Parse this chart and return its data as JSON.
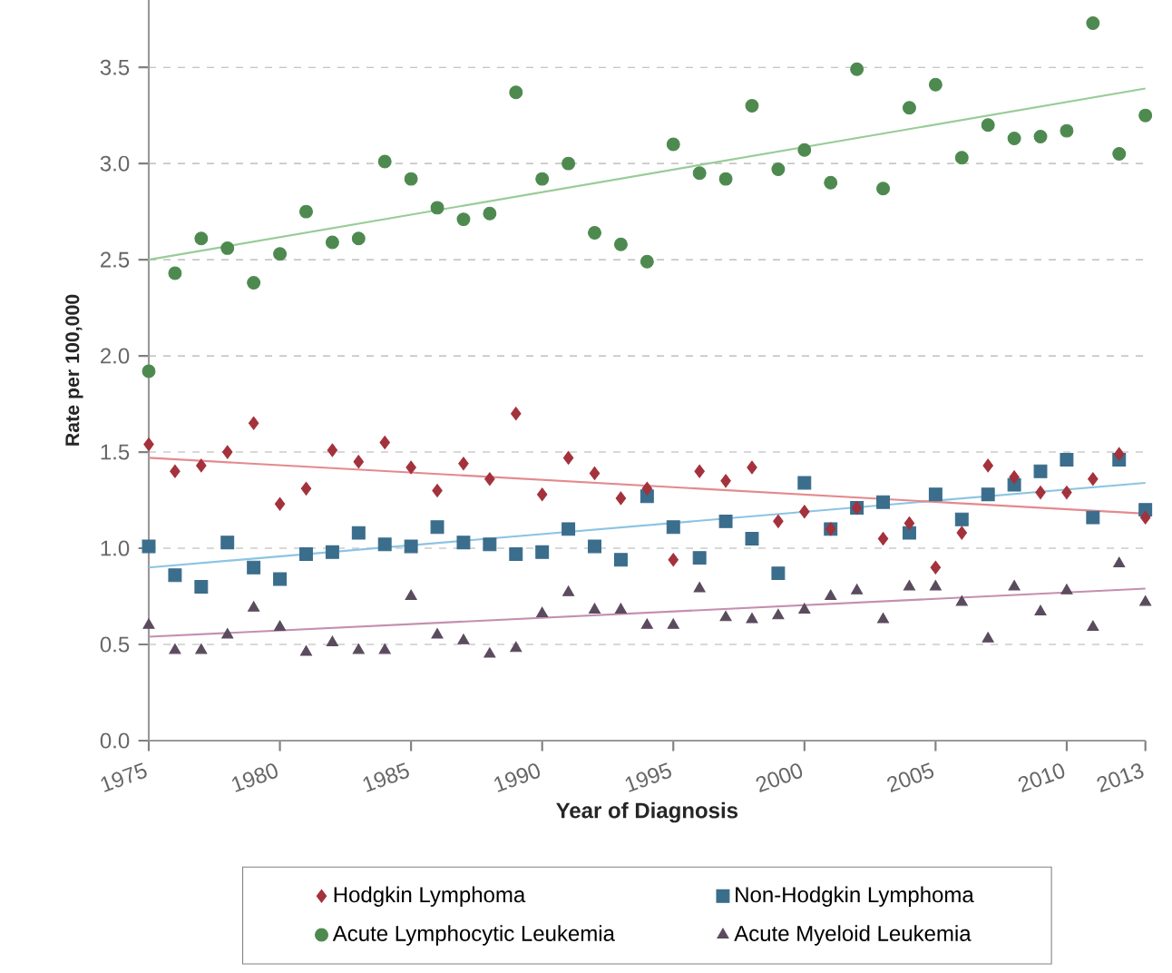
{
  "chart_data": {
    "type": "scatter",
    "xlabel": "Year of Diagnosis",
    "ylabel": "Rate per 100,000",
    "x": [
      1975,
      1976,
      1977,
      1978,
      1979,
      1980,
      1981,
      1982,
      1983,
      1984,
      1985,
      1986,
      1987,
      1988,
      1989,
      1990,
      1991,
      1992,
      1993,
      1994,
      1995,
      1996,
      1997,
      1998,
      1999,
      2000,
      2001,
      2002,
      2003,
      2004,
      2005,
      2006,
      2007,
      2008,
      2009,
      2010,
      2011,
      2012,
      2013
    ],
    "series": [
      {
        "name": "Hodgkin Lymphoma",
        "color": "#a3323c",
        "marker": "diamond",
        "values": [
          1.54,
          1.4,
          1.43,
          1.5,
          1.65,
          1.23,
          1.31,
          1.51,
          1.45,
          1.55,
          1.42,
          1.3,
          1.44,
          1.36,
          1.7,
          1.28,
          1.47,
          1.39,
          1.26,
          1.31,
          0.94,
          1.4,
          1.35,
          1.42,
          1.14,
          1.19,
          1.1,
          1.21,
          1.05,
          1.13,
          0.9,
          1.08,
          1.43,
          1.37,
          1.29,
          1.29,
          1.36,
          1.49,
          1.16
        ]
      },
      {
        "name": "Non-Hodgkin Lymphoma",
        "color": "#3b6d8c",
        "marker": "square",
        "values": [
          1.01,
          0.86,
          0.8,
          1.03,
          0.9,
          0.84,
          0.97,
          0.98,
          1.08,
          1.02,
          1.01,
          1.11,
          1.03,
          1.02,
          0.97,
          0.98,
          1.1,
          1.01,
          0.94,
          1.27,
          1.11,
          0.95,
          1.14,
          1.05,
          0.87,
          1.34,
          1.1,
          1.21,
          1.24,
          1.08,
          1.28,
          1.15,
          1.28,
          1.33,
          1.4,
          1.46,
          1.16,
          1.46,
          1.2
        ]
      },
      {
        "name": "Acute Lymphocytic Leukemia",
        "color": "#4e8a50",
        "marker": "circle",
        "values": [
          1.92,
          2.43,
          2.61,
          2.56,
          2.38,
          2.53,
          2.75,
          2.59,
          2.61,
          3.01,
          2.92,
          2.77,
          2.71,
          2.74,
          3.37,
          2.92,
          3.0,
          2.64,
          2.58,
          2.49,
          3.1,
          2.95,
          2.92,
          3.3,
          2.97,
          3.07,
          2.9,
          3.49,
          2.87,
          3.29,
          3.41,
          3.03,
          3.2,
          3.13,
          3.14,
          3.17,
          3.73,
          3.05,
          3.25
        ]
      },
      {
        "name": "Acute Myeloid Leukemia",
        "color": "#5b4b5e",
        "marker": "triangle",
        "values": [
          0.6,
          0.47,
          0.47,
          0.55,
          0.69,
          0.59,
          0.46,
          0.51,
          0.47,
          0.47,
          0.75,
          0.55,
          0.52,
          0.45,
          0.48,
          0.66,
          0.77,
          0.68,
          0.68,
          0.6,
          0.6,
          0.79,
          0.64,
          0.63,
          0.65,
          0.68,
          0.75,
          0.78,
          0.63,
          0.8,
          0.8,
          0.72,
          0.53,
          0.8,
          0.67,
          0.78,
          0.59,
          0.92,
          0.72
        ]
      },
      {
        "type": "line",
        "color": "#e38a8f",
        "values": [
          1.47,
          null,
          null,
          null,
          null,
          null,
          null,
          null,
          null,
          null,
          null,
          null,
          null,
          null,
          null,
          null,
          null,
          null,
          null,
          null,
          null,
          null,
          null,
          null,
          null,
          null,
          null,
          null,
          null,
          null,
          null,
          null,
          null,
          null,
          null,
          null,
          null,
          null,
          1.18
        ]
      },
      {
        "type": "line",
        "color": "#8cc4e3",
        "values": [
          0.9,
          null,
          null,
          null,
          null,
          null,
          null,
          null,
          null,
          null,
          null,
          null,
          null,
          null,
          null,
          null,
          null,
          null,
          null,
          null,
          null,
          null,
          null,
          null,
          null,
          null,
          null,
          null,
          null,
          null,
          null,
          null,
          null,
          null,
          null,
          null,
          null,
          null,
          1.34
        ]
      },
      {
        "type": "line",
        "color": "#98cc98",
        "values": [
          2.5,
          null,
          null,
          null,
          null,
          null,
          null,
          null,
          null,
          null,
          null,
          null,
          null,
          null,
          null,
          null,
          null,
          null,
          null,
          null,
          null,
          null,
          null,
          null,
          null,
          null,
          null,
          null,
          null,
          null,
          null,
          null,
          null,
          null,
          null,
          null,
          null,
          null,
          3.39
        ]
      },
      {
        "type": "line",
        "color": "#c48fb0",
        "values": [
          0.54,
          null,
          null,
          null,
          null,
          null,
          null,
          null,
          null,
          null,
          null,
          null,
          null,
          null,
          null,
          null,
          null,
          null,
          null,
          null,
          null,
          null,
          null,
          null,
          null,
          null,
          null,
          null,
          null,
          null,
          null,
          null,
          null,
          null,
          null,
          null,
          null,
          null,
          0.79
        ]
      }
    ],
    "xlim": [
      1975,
      2013
    ],
    "xticks": [
      1975,
      1980,
      1985,
      1990,
      1995,
      2000,
      2005,
      2010,
      2013
    ],
    "ylim": [
      0,
      3.85
    ],
    "yticks": [
      {
        "value": 0,
        "label": "0.0"
      },
      {
        "value": 0.5,
        "label": "0.5"
      },
      {
        "value": 1,
        "label": "1.0"
      },
      {
        "value": 1.5,
        "label": "1.5"
      },
      {
        "value": 2,
        "label": "2.0"
      },
      {
        "value": 2.5,
        "label": "2.5"
      },
      {
        "value": 3,
        "label": "3.0"
      },
      {
        "value": 3.5,
        "label": "3.5"
      }
    ],
    "grid": "y",
    "legend": "bottom"
  }
}
